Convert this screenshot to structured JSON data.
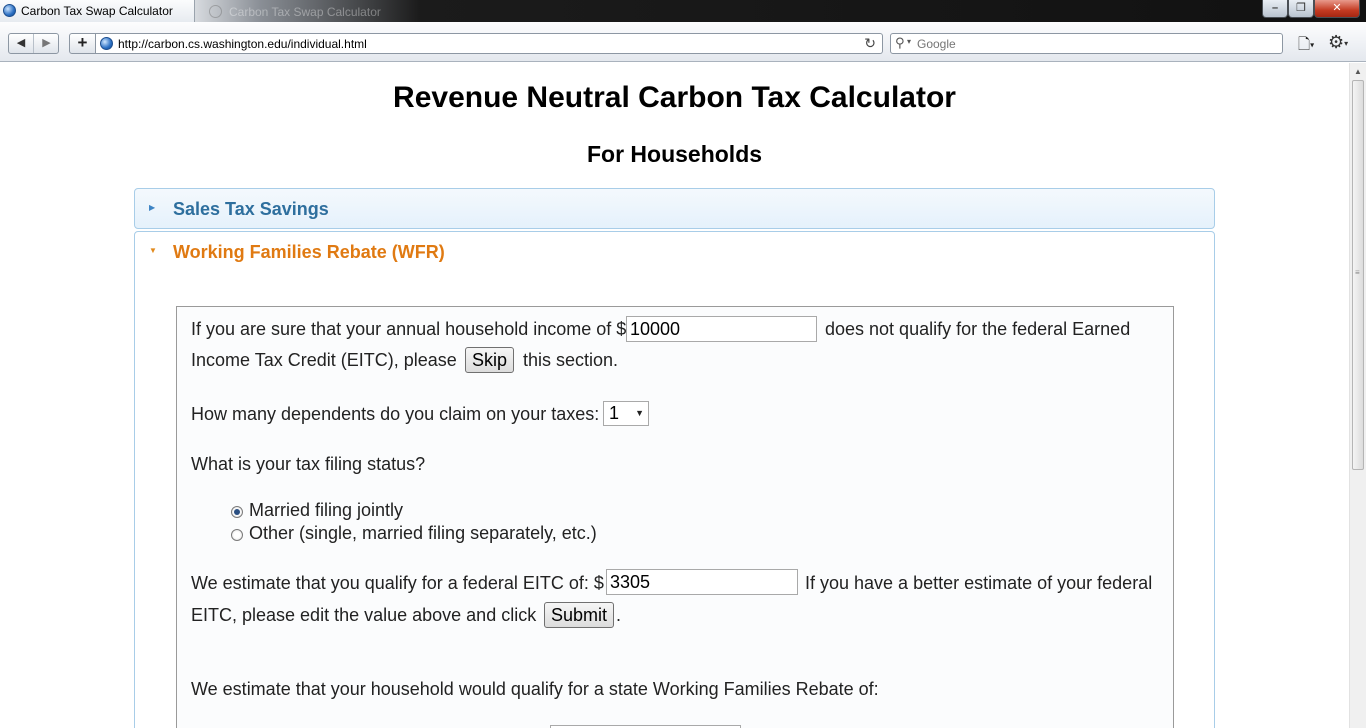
{
  "browser": {
    "active_tab_title": "Carbon Tax Swap Calculator",
    "background_tab_title": "Carbon Tax Swap Calculator",
    "url": "http://carbon.cs.washington.edu/individual.html",
    "search_placeholder": "Google"
  },
  "page": {
    "title": "Revenue Neutral Carbon Tax Calculator",
    "subtitle": "For Households"
  },
  "accordion": [
    {
      "label": "Sales Tax Savings",
      "expanded": false
    },
    {
      "label": "Working Families Rebate (WFR)",
      "expanded": true
    }
  ],
  "wfr": {
    "income_prefix": "If you are sure that your annual household income of $",
    "income_value": "10000",
    "income_suffix": "does not qualify for the federal Earned",
    "income_line2_prefix": "Income Tax Credit (EITC), please",
    "skip_label": "Skip",
    "income_line2_suffix": "this section.",
    "dependents_question": "How many dependents do you claim on your taxes:",
    "dependents_value": "1",
    "filing_question": "What is your tax filing status?",
    "filing_options": [
      {
        "label": "Married filing jointly",
        "checked": true
      },
      {
        "label": "Other (single, married filing separately, etc.)",
        "checked": false
      }
    ],
    "eitc_prefix": "We estimate that you qualify for a federal EITC of: $",
    "eitc_value": "3305",
    "eitc_suffix": "If you have a better estimate of your federal",
    "eitc_line2_prefix": "EITC, please edit the value above and click",
    "submit_label": "Submit",
    "eitc_line2_suffix": ".",
    "rebate_text": "We estimate that your household would qualify for a state Working Families Rebate of:"
  }
}
